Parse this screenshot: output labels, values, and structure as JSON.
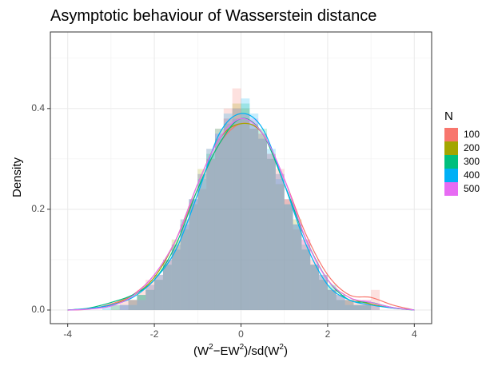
{
  "chart_data": {
    "type": "histogram-density",
    "title": "Asymptotic behaviour of Wasserstein distance",
    "xlabel": [
      {
        "text": "(W",
        "sup": false
      },
      {
        "text": "2",
        "sup": true
      },
      {
        "text": "−EW",
        "sup": false
      },
      {
        "text": "2",
        "sup": true
      },
      {
        "text": ")/sd(W",
        "sup": false
      },
      {
        "text": "2",
        "sup": true
      },
      {
        "text": ")",
        "sup": false
      }
    ],
    "ylabel": "Density",
    "legend_title": "N",
    "xlim": [
      -4.4,
      4.4
    ],
    "ylim": [
      -0.027,
      0.552
    ],
    "xticks": [
      -4,
      -2,
      0,
      2,
      4
    ],
    "xminor": [
      -3,
      -1,
      1,
      3
    ],
    "yticks": [
      {
        "value": 0,
        "label": "0.0"
      },
      0.2,
      0.4
    ],
    "yminor": [
      0.1,
      0.3,
      0.5
    ],
    "grid": true,
    "bar_opacity": 0.22,
    "bins": [
      -3.2,
      -3.0,
      -2.8,
      -2.6,
      -2.4,
      -2.2,
      -2.0,
      -1.8,
      -1.6,
      -1.4,
      -1.2,
      -1.0,
      -0.8,
      -0.6,
      -0.4,
      -0.2,
      0,
      0.2,
      0.4,
      0.6,
      0.8,
      1.0,
      1.2,
      1.4,
      1.6,
      1.8,
      2.0,
      2.2,
      2.4,
      2.6,
      2.8,
      3.0,
      3.2,
      3.4
    ],
    "density_x": [
      -4,
      -3.5,
      -3,
      -2.5,
      -2,
      -1.5,
      -1,
      -0.5,
      0,
      0.5,
      1,
      1.5,
      2,
      2.5,
      3,
      3.5,
      4
    ],
    "series": [
      {
        "name": "100",
        "color": "#F8766D",
        "values": [
          0,
          0,
          0.02,
          0.02,
          0.04,
          0.06,
          0.06,
          0.1,
          0.12,
          0.18,
          0.22,
          0.24,
          0.32,
          0.36,
          0.4,
          0.44,
          0.38,
          0.36,
          0.34,
          0.3,
          0.28,
          0.22,
          0.16,
          0.14,
          0.1,
          0.06,
          0.04,
          0.02,
          0.02,
          0.02,
          0.02,
          0.04,
          0
        ],
        "density": [
          0,
          0.002,
          0.012,
          0.03,
          0.07,
          0.14,
          0.24,
          0.33,
          0.37,
          0.35,
          0.26,
          0.15,
          0.07,
          0.03,
          0.025,
          0.01,
          0
        ]
      },
      {
        "name": "200",
        "color": "#A3A500",
        "values": [
          0,
          0.01,
          0.0,
          0.02,
          0.03,
          0.04,
          0.07,
          0.09,
          0.14,
          0.16,
          0.21,
          0.28,
          0.3,
          0.34,
          0.38,
          0.41,
          0.4,
          0.36,
          0.35,
          0.31,
          0.25,
          0.22,
          0.18,
          0.12,
          0.09,
          0.07,
          0.04,
          0.03,
          0.02,
          0.01,
          0.01,
          0.0,
          0
        ],
        "density": [
          0,
          0.003,
          0.01,
          0.028,
          0.065,
          0.14,
          0.25,
          0.34,
          0.37,
          0.35,
          0.25,
          0.14,
          0.06,
          0.025,
          0.012,
          0.004,
          0
        ]
      },
      {
        "name": "300",
        "color": "#00BF7D",
        "values": [
          0,
          0,
          0.01,
          0.02,
          0.03,
          0.05,
          0.06,
          0.1,
          0.13,
          0.17,
          0.22,
          0.27,
          0.31,
          0.36,
          0.37,
          0.4,
          0.41,
          0.37,
          0.36,
          0.3,
          0.27,
          0.21,
          0.17,
          0.13,
          0.09,
          0.06,
          0.05,
          0.02,
          0.02,
          0.01,
          0.01,
          0.01,
          0
        ],
        "density": [
          0,
          0.004,
          0.015,
          0.03,
          0.06,
          0.13,
          0.24,
          0.33,
          0.38,
          0.35,
          0.25,
          0.14,
          0.06,
          0.02,
          0.015,
          0.005,
          0
        ]
      },
      {
        "name": "400",
        "color": "#00B0F6",
        "values": [
          0.01,
          0.01,
          0.01,
          0.01,
          0.03,
          0.04,
          0.07,
          0.09,
          0.12,
          0.18,
          0.22,
          0.26,
          0.32,
          0.35,
          0.39,
          0.38,
          0.42,
          0.39,
          0.34,
          0.32,
          0.26,
          0.21,
          0.17,
          0.12,
          0.09,
          0.07,
          0.04,
          0.03,
          0.01,
          0.01,
          0.01,
          0.0,
          0
        ],
        "density": [
          0,
          0.003,
          0.01,
          0.025,
          0.06,
          0.12,
          0.23,
          0.35,
          0.39,
          0.36,
          0.25,
          0.13,
          0.05,
          0.02,
          0.01,
          0.004,
          0
        ]
      },
      {
        "name": "500",
        "color": "#E76BF3",
        "values": [
          0,
          0,
          0.01,
          0.02,
          0.02,
          0.05,
          0.07,
          0.1,
          0.13,
          0.17,
          0.22,
          0.27,
          0.3,
          0.35,
          0.38,
          0.4,
          0.39,
          0.38,
          0.35,
          0.31,
          0.27,
          0.22,
          0.17,
          0.14,
          0.09,
          0.07,
          0.04,
          0.03,
          0.02,
          0.01,
          0.02,
          0.01,
          0
        ],
        "density": [
          0,
          0.002,
          0.008,
          0.028,
          0.07,
          0.14,
          0.25,
          0.34,
          0.38,
          0.35,
          0.26,
          0.14,
          0.06,
          0.025,
          0.015,
          0.005,
          0
        ]
      }
    ]
  }
}
